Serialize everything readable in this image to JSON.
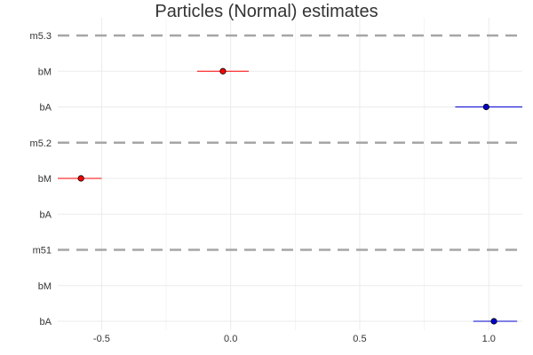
{
  "chart_data": {
    "type": "scatter",
    "title": "Particles (Normal) estimates",
    "xlabel": "",
    "ylabel": "",
    "xlim": [
      -0.67,
      1.13
    ],
    "x_ticks": [
      -0.5,
      0.0,
      0.5,
      1.0
    ],
    "x_tick_labels": [
      "-0.5",
      "0.0",
      "0.5",
      "1.0"
    ],
    "grid": true,
    "rows": [
      {
        "label": "m5.3",
        "kind": "model"
      },
      {
        "label": "bM",
        "kind": "param",
        "estimate": -0.03,
        "lower": -0.13,
        "upper": 0.07,
        "color": "#ff0000"
      },
      {
        "label": "bA",
        "kind": "param",
        "estimate": 0.99,
        "lower": 0.87,
        "upper": 1.13,
        "color": "#0000cd"
      },
      {
        "label": "m5.2",
        "kind": "model"
      },
      {
        "label": "bM",
        "kind": "param",
        "estimate": -0.58,
        "lower": -0.67,
        "upper": -0.5,
        "color": "#ff0000"
      },
      {
        "label": "bA",
        "kind": "param"
      },
      {
        "label": "m51",
        "kind": "model"
      },
      {
        "label": "bM",
        "kind": "param"
      },
      {
        "label": "bA",
        "kind": "param",
        "estimate": 1.02,
        "lower": 0.94,
        "upper": 1.11,
        "color": "#0000cd"
      }
    ],
    "colors": {
      "bM": "#ff0000",
      "bA": "#0000cd",
      "model_line": "#a6a6a6",
      "grid": "#ebebeb"
    }
  }
}
